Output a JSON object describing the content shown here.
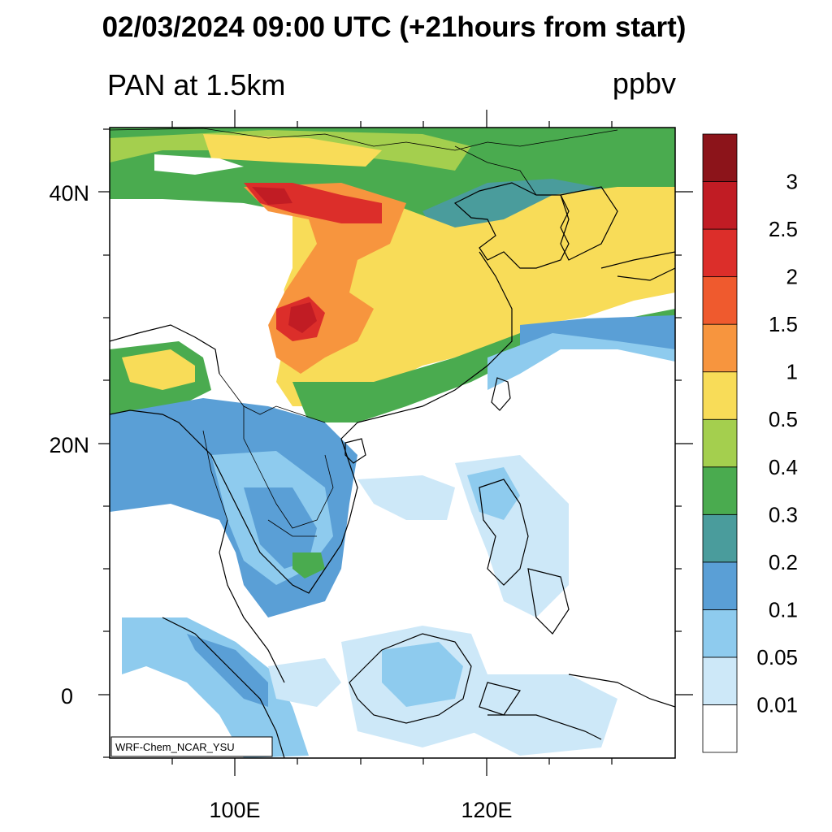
{
  "title": "02/03/2024 09:00 UTC (+21hours from start)",
  "subtitle": "PAN at 1.5km",
  "units": "ppbv",
  "credit": "WRF-Chem_NCAR_YSU",
  "lat_labels": [
    "40N",
    "20N",
    "0"
  ],
  "lon_labels": [
    "100E",
    "120E"
  ],
  "colorbar": {
    "levels": [
      "0.01",
      "0.05",
      "0.1",
      "0.2",
      "0.3",
      "0.4",
      "0.5",
      "1",
      "1.5",
      "2",
      "2.5",
      "3"
    ],
    "colors": [
      "#ffffff",
      "#cde8f8",
      "#8ecbee",
      "#5a9fd6",
      "#4a9c9c",
      "#4aab4f",
      "#a4cf4e",
      "#f8dc58",
      "#f7953e",
      "#ef5a2e",
      "#dc2e2a",
      "#c11c24",
      "#8c141a"
    ]
  }
}
